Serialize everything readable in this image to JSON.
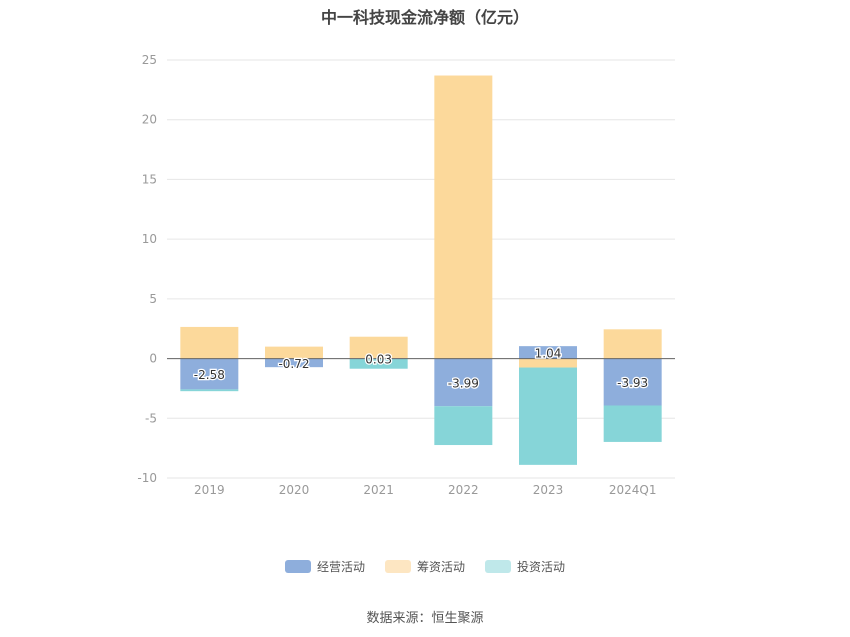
{
  "chart_data": {
    "type": "bar",
    "stacked": true,
    "title": "中一科技现金流净额（亿元）",
    "categories": [
      "2019",
      "2020",
      "2021",
      "2022",
      "2023",
      "2024Q1"
    ],
    "series": [
      {
        "name": "经营活动",
        "color": "#8eaedc",
        "values": [
          -2.58,
          -0.72,
          0.03,
          -3.99,
          1.04,
          -3.93
        ]
      },
      {
        "name": "筹资活动",
        "color": "#fcd99b",
        "values": [
          2.65,
          1.0,
          1.8,
          23.7,
          -0.75,
          2.45
        ]
      },
      {
        "name": "投资活动",
        "color": "#86d5d8",
        "values": [
          -0.15,
          0.0,
          -0.85,
          -3.25,
          -8.15,
          -3.05
        ]
      }
    ],
    "data_labels": [
      "-2.58",
      "-0.72",
      "0.03",
      "-3.99",
      "1.04",
      "-3.93"
    ],
    "yticks": [
      25,
      20,
      15,
      10,
      5,
      0,
      -5,
      -10
    ],
    "ylim": [
      -10,
      25
    ],
    "grid": true,
    "legend_position": "bottom",
    "legend_colors": [
      "#8eaedc",
      "#fde6c2",
      "#bfe8ea"
    ]
  },
  "source": "数据来源：恒生聚源"
}
